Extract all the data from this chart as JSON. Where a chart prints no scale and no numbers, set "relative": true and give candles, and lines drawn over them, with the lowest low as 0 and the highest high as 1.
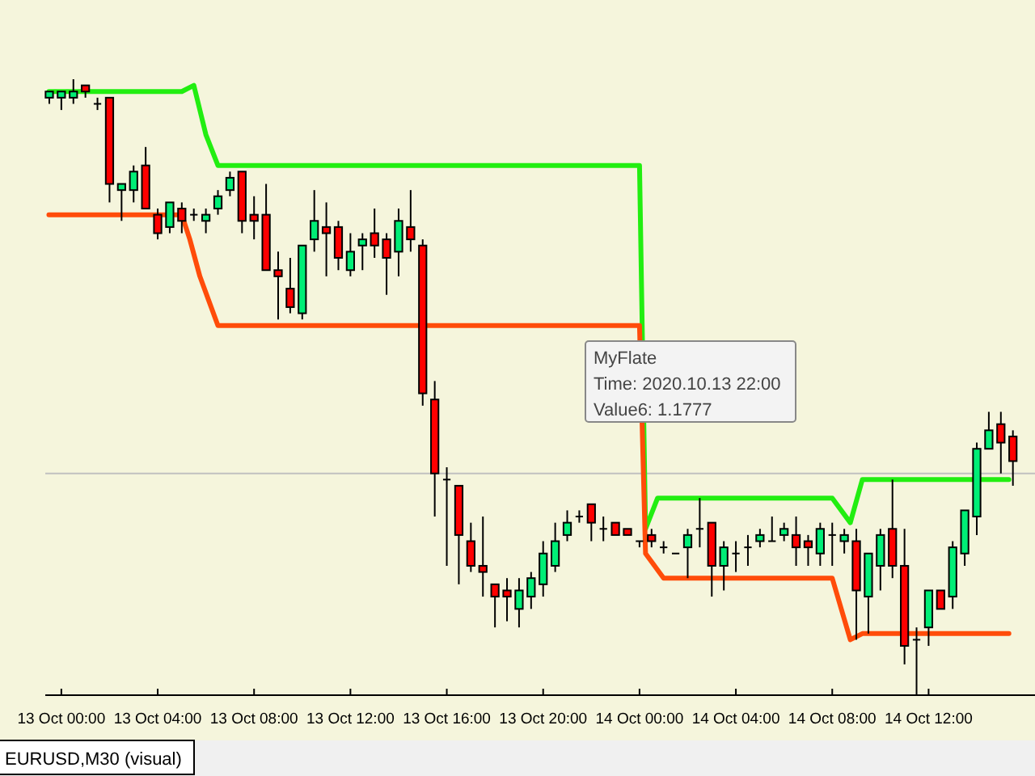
{
  "chart_data": {
    "type": "candlestick",
    "relative": true,
    "tick_labels": "x",
    "x": [
      "2020-10-12T23:30",
      "2020-10-13T00:00",
      "2020-10-13T00:30",
      "2020-10-13T01:00",
      "2020-10-13T01:30",
      "2020-10-13T02:00",
      "2020-10-13T02:30",
      "2020-10-13T03:00",
      "2020-10-13T03:30",
      "2020-10-13T04:00",
      "2020-10-13T04:30",
      "2020-10-13T05:00",
      "2020-10-13T05:30",
      "2020-10-13T06:00",
      "2020-10-13T06:30",
      "2020-10-13T07:00",
      "2020-10-13T07:30",
      "2020-10-13T08:00",
      "2020-10-13T08:30",
      "2020-10-13T09:00",
      "2020-10-13T09:30",
      "2020-10-13T10:00",
      "2020-10-13T10:30",
      "2020-10-13T11:00",
      "2020-10-13T11:30",
      "2020-10-13T12:00",
      "2020-10-13T12:30",
      "2020-10-13T13:00",
      "2020-10-13T13:30",
      "2020-10-13T14:00",
      "2020-10-13T14:30",
      "2020-10-13T15:00",
      "2020-10-13T15:30",
      "2020-10-13T16:00",
      "2020-10-13T16:30",
      "2020-10-13T17:00",
      "2020-10-13T17:30",
      "2020-10-13T18:00",
      "2020-10-13T18:30",
      "2020-10-13T19:00",
      "2020-10-13T19:30",
      "2020-10-13T20:00",
      "2020-10-13T20:30",
      "2020-10-13T21:00",
      "2020-10-13T21:30",
      "2020-10-13T22:00",
      "2020-10-13T22:30",
      "2020-10-13T23:00",
      "2020-10-13T23:30",
      "2020-10-14T00:00",
      "2020-10-14T00:30",
      "2020-10-14T01:00",
      "2020-10-14T01:30",
      "2020-10-14T02:00",
      "2020-10-14T02:30",
      "2020-10-14T03:00",
      "2020-10-14T03:30",
      "2020-10-14T04:00",
      "2020-10-14T04:30",
      "2020-10-14T05:00",
      "2020-10-14T05:30",
      "2020-10-14T06:00",
      "2020-10-14T06:30",
      "2020-10-14T07:00",
      "2020-10-14T07:30",
      "2020-10-14T08:00",
      "2020-10-14T08:30",
      "2020-10-14T09:00",
      "2020-10-14T09:30",
      "2020-10-14T10:00",
      "2020-10-14T10:30",
      "2020-10-14T11:00",
      "2020-10-14T11:30",
      "2020-10-14T12:00",
      "2020-10-14T12:30",
      "2020-10-14T13:00",
      "2020-10-14T13:30",
      "2020-10-14T14:00",
      "2020-10-14T14:30",
      "2020-10-14T15:00",
      "2020-10-14T15:30"
    ],
    "ohlc": [
      [
        0.97,
        0.98,
        0.96,
        0.98
      ],
      [
        0.97,
        0.98,
        0.95,
        0.98
      ],
      [
        0.97,
        1,
        0.96,
        0.98
      ],
      [
        0.99,
        0.99,
        0.97,
        0.98
      ],
      [
        0.96,
        0.97,
        0.95,
        0.96
      ],
      [
        0.97,
        0.97,
        0.8,
        0.83
      ],
      [
        0.82,
        0.83,
        0.77,
        0.83
      ],
      [
        0.82,
        0.86,
        0.8,
        0.85
      ],
      [
        0.86,
        0.89,
        0.79,
        0.79
      ],
      [
        0.78,
        0.79,
        0.74,
        0.75
      ],
      [
        0.76,
        0.8,
        0.75,
        0.8
      ],
      [
        0.79,
        0.8,
        0.75,
        0.77
      ],
      [
        0.78,
        0.79,
        0.77,
        0.78
      ],
      [
        0.77,
        0.79,
        0.75,
        0.78
      ],
      [
        0.79,
        0.82,
        0.78,
        0.81
      ],
      [
        0.82,
        0.85,
        0.81,
        0.84
      ],
      [
        0.85,
        0.85,
        0.75,
        0.77
      ],
      [
        0.78,
        0.81,
        0.74,
        0.77
      ],
      [
        0.78,
        0.83,
        0.69,
        0.69
      ],
      [
        0.69,
        0.72,
        0.61,
        0.68
      ],
      [
        0.66,
        0.71,
        0.62,
        0.63
      ],
      [
        0.62,
        0.73,
        0.61,
        0.73
      ],
      [
        0.74,
        0.82,
        0.72,
        0.77
      ],
      [
        0.76,
        0.8,
        0.68,
        0.75
      ],
      [
        0.76,
        0.77,
        0.69,
        0.71
      ],
      [
        0.69,
        0.75,
        0.68,
        0.72
      ],
      [
        0.73,
        0.75,
        0.69,
        0.74
      ],
      [
        0.75,
        0.79,
        0.71,
        0.73
      ],
      [
        0.74,
        0.75,
        0.65,
        0.71
      ],
      [
        0.72,
        0.79,
        0.68,
        0.77
      ],
      [
        0.76,
        0.82,
        0.72,
        0.74
      ],
      [
        0.73,
        0.74,
        0.47,
        0.49
      ],
      [
        0.48,
        0.51,
        0.29,
        0.36
      ],
      [
        0.35,
        0.37,
        0.21,
        0.35
      ],
      [
        0.34,
        0.34,
        0.18,
        0.26
      ],
      [
        0.25,
        0.28,
        0.2,
        0.21
      ],
      [
        0.21,
        0.29,
        0.16,
        0.2
      ],
      [
        0.18,
        0.18,
        0.11,
        0.16
      ],
      [
        0.17,
        0.19,
        0.12,
        0.16
      ],
      [
        0.14,
        0.19,
        0.11,
        0.17
      ],
      [
        0.16,
        0.2,
        0.14,
        0.19
      ],
      [
        0.18,
        0.25,
        0.16,
        0.23
      ],
      [
        0.21,
        0.28,
        0.2,
        0.25
      ],
      [
        0.26,
        0.3,
        0.25,
        0.28
      ],
      [
        0.29,
        0.3,
        0.28,
        0.29
      ],
      [
        0.31,
        0.31,
        0.25,
        0.28
      ],
      [
        0.27,
        0.29,
        0.25,
        0.27
      ],
      [
        0.28,
        0.28,
        0.26,
        0.26
      ],
      [
        0.27,
        0.27,
        0.26,
        0.26
      ],
      [
        0.25,
        0.25,
        0.24,
        0.25
      ],
      [
        0.26,
        0.27,
        0.24,
        0.25
      ],
      [
        0.24,
        0.25,
        0.23,
        0.24
      ],
      [
        0.23,
        0.23,
        0.23,
        0.23
      ],
      [
        0.24,
        0.27,
        0.19,
        0.26
      ],
      [
        0.27,
        0.32,
        0.24,
        0.27
      ],
      [
        0.28,
        0.28,
        0.16,
        0.21
      ],
      [
        0.21,
        0.25,
        0.17,
        0.24
      ],
      [
        0.23,
        0.25,
        0.2,
        0.23
      ],
      [
        0.24,
        0.26,
        0.21,
        0.24
      ],
      [
        0.25,
        0.27,
        0.24,
        0.26
      ],
      [
        0.25,
        0.29,
        0.25,
        0.25
      ],
      [
        0.26,
        0.28,
        0.25,
        0.27
      ],
      [
        0.26,
        0.29,
        0.21,
        0.24
      ],
      [
        0.25,
        0.26,
        0.21,
        0.24
      ],
      [
        0.23,
        0.28,
        0.21,
        0.27
      ],
      [
        0.26,
        0.28,
        0.21,
        0.26
      ],
      [
        0.25,
        0.27,
        0.23,
        0.26
      ],
      [
        0.25,
        0.27,
        0.09,
        0.17
      ],
      [
        0.16,
        0.23,
        0.1,
        0.23
      ],
      [
        0.21,
        0.27,
        0.17,
        0.26
      ],
      [
        0.27,
        0.35,
        0.19,
        0.21
      ],
      [
        0.21,
        0.27,
        0.05,
        0.08
      ],
      [
        0.09,
        0.11,
        0,
        0.09
      ],
      [
        0.11,
        0.17,
        0.08,
        0.17
      ],
      [
        0.17,
        0.17,
        0.14,
        0.14
      ],
      [
        0.16,
        0.25,
        0.14,
        0.24
      ],
      [
        0.23,
        0.3,
        0.21,
        0.3
      ],
      [
        0.29,
        0.41,
        0.26,
        0.4
      ],
      [
        0.4,
        0.46,
        0.4,
        0.43
      ],
      [
        0.44,
        0.46,
        0.36,
        0.41
      ],
      [
        0.42,
        0.43,
        0.34,
        0.38
      ]
    ],
    "series": [
      {
        "type": "line",
        "color": "#22ee11",
        "x": [
          "2020-10-12T23:29",
          "2020-10-13T05:00",
          "2020-10-13T05:30",
          "2020-10-13T06:00",
          "2020-10-13T06:30",
          "2020-10-14T00:00",
          "2020-10-14T00:15",
          "2020-10-14T00:45",
          "2020-10-14T08:00",
          "2020-10-14T08:45",
          "2020-10-14T09:15",
          "2020-10-14T15:20"
        ],
        "values": [
          0.98,
          0.98,
          0.99,
          0.91,
          0.86,
          0.86,
          0.27,
          0.32,
          0.32,
          0.28,
          0.35,
          0.35
        ]
      },
      {
        "type": "line",
        "color": "#ff4c0a",
        "x": [
          "2020-10-12T23:29",
          "2020-10-13T05:00",
          "2020-10-13T05:20",
          "2020-10-13T05:45",
          "2020-10-13T06:30",
          "2020-10-14T00:00",
          "2020-10-14T00:15",
          "2020-10-14T01:00",
          "2020-10-14T08:00",
          "2020-10-14T08:45",
          "2020-10-14T09:15",
          "2020-10-14T15:20"
        ],
        "values": [
          0.78,
          0.78,
          0.74,
          0.68,
          0.6,
          0.6,
          0.23,
          0.19,
          0.19,
          0.09,
          0.1,
          0.1
        ]
      }
    ],
    "ref_lines": [
      {
        "axis": "y",
        "value": 0.36,
        "color": "#c0c0c0"
      }
    ],
    "xlim": [
      "2020-10-12T23:20",
      "2020-10-14T16:25"
    ],
    "xticks": [
      {
        "value": "2020-10-13T00:00",
        "label": "13 Oct 00:00"
      },
      {
        "value": "2020-10-13T04:00",
        "label": "13 Oct 04:00"
      },
      {
        "value": "2020-10-13T08:00",
        "label": "13 Oct 08:00"
      },
      {
        "value": "2020-10-13T12:00",
        "label": "13 Oct 12:00"
      },
      {
        "value": "2020-10-13T16:00",
        "label": "13 Oct 16:00"
      },
      {
        "value": "2020-10-13T20:00",
        "label": "13 Oct 20:00"
      },
      {
        "value": "2020-10-14T00:00",
        "label": "14 Oct 00:00"
      },
      {
        "value": "2020-10-14T04:00",
        "label": "14 Oct 04:00"
      },
      {
        "value": "2020-10-14T08:00",
        "label": "14 Oct 08:00"
      },
      {
        "value": "2020-10-14T12:00",
        "label": "14 Oct 12:00"
      }
    ],
    "annotations": [
      "MyFlate",
      "Time: 2020.10.13 22:00",
      "Value6: 1.1777",
      "EURUSD,M30 (visual)"
    ]
  }
}
